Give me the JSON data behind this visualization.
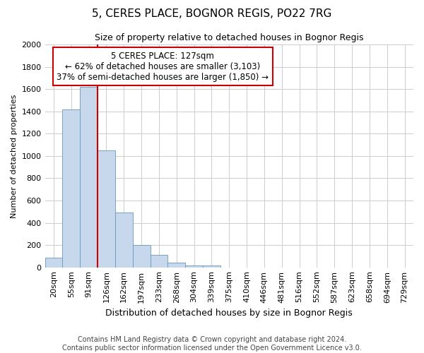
{
  "title": "5, CERES PLACE, BOGNOR REGIS, PO22 7RG",
  "subtitle": "Size of property relative to detached houses in Bognor Regis",
  "xlabel": "Distribution of detached houses by size in Bognor Regis",
  "ylabel": "Number of detached properties",
  "footer_line1": "Contains HM Land Registry data © Crown copyright and database right 2024.",
  "footer_line2": "Contains public sector information licensed under the Open Government Licence v3.0.",
  "bar_labels": [
    "20sqm",
    "55sqm",
    "91sqm",
    "126sqm",
    "162sqm",
    "197sqm",
    "233sqm",
    "268sqm",
    "304sqm",
    "339sqm",
    "375sqm",
    "410sqm",
    "446sqm",
    "481sqm",
    "516sqm",
    "552sqm",
    "587sqm",
    "623sqm",
    "658sqm",
    "694sqm",
    "729sqm"
  ],
  "bar_values": [
    85,
    1420,
    1620,
    1050,
    490,
    200,
    110,
    40,
    20,
    15,
    0,
    0,
    0,
    0,
    0,
    0,
    0,
    0,
    0,
    0,
    0
  ],
  "bar_color": "#c8d8ec",
  "bar_edge_color": "#6699bb",
  "red_line_index": 3,
  "red_line_color": "#cc0000",
  "annotation_line1": "5 CERES PLACE: 127sqm",
  "annotation_line2": "← 62% of detached houses are smaller (3,103)",
  "annotation_line3": "37% of semi-detached houses are larger (1,850) →",
  "ylim": [
    0,
    2000
  ],
  "yticks": [
    0,
    200,
    400,
    600,
    800,
    1000,
    1200,
    1400,
    1600,
    1800,
    2000
  ],
  "bg_color": "#ffffff",
  "grid_color": "#cccccc",
  "title_fontsize": 11,
  "subtitle_fontsize": 9,
  "ylabel_fontsize": 8,
  "xlabel_fontsize": 9,
  "tick_fontsize": 8,
  "footer_fontsize": 7
}
